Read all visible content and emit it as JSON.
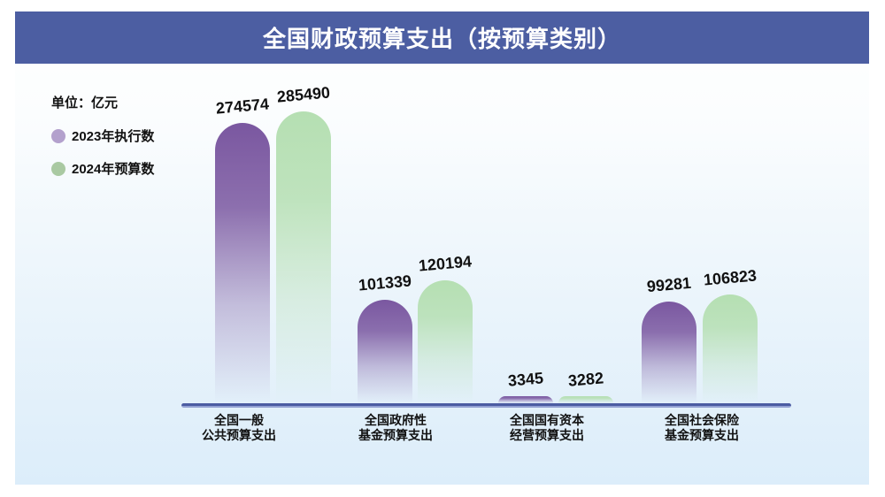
{
  "header": {
    "title": "全国财政预算支出（按预算类别）",
    "background_color": "#4c5ea2",
    "text_color": "#ffffff"
  },
  "legend": {
    "unit_label": "单位：亿元",
    "items": [
      {
        "label": "2023年执行数",
        "swatch_color": "#b3a1cd"
      },
      {
        "label": "2024年预算数",
        "swatch_color": "#a9c9a2"
      }
    ]
  },
  "chart_data": {
    "type": "bar",
    "title": "全国财政预算支出（按预算类别）",
    "unit": "亿元",
    "categories": [
      "全国一般\n公共预算支出",
      "全国政府性\n基金预算支出",
      "全国国有资本\n经营预算支出",
      "全国社会保险\n基金预算支出"
    ],
    "series": [
      {
        "name": "2023年执行数",
        "color": "#7a57a0",
        "values": [
          274574,
          101339,
          3345,
          99281
        ]
      },
      {
        "name": "2024年预算数",
        "color": "#b5dfb2",
        "values": [
          285490,
          120194,
          3282,
          106823
        ]
      }
    ],
    "value_labels": true,
    "grid": false,
    "legend_position": "top-left",
    "axis_color": "#4b5ca2",
    "ylim": [
      0,
      300000
    ]
  }
}
